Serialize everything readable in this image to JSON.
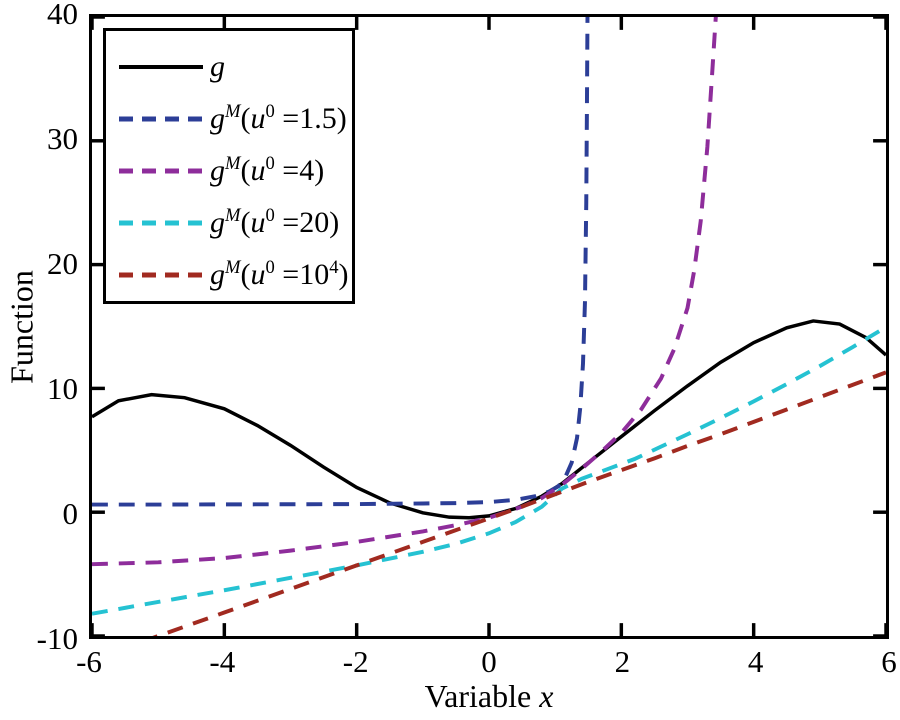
{
  "figure": {
    "background": "#ffffff",
    "axis_color": "#000000"
  },
  "axis": {
    "xlabel_regular": "Variable ",
    "xlabel_italic": "x",
    "ylabel": "Function"
  },
  "legend": {
    "position": "upper-left",
    "items": [
      {
        "g": "g",
        "gsup": "",
        "open": "",
        "u": "",
        "usup": "",
        "eq": "",
        "val": "",
        "valsup": "",
        "close": "",
        "color": "#000000",
        "style": "solid"
      },
      {
        "g": "g",
        "gsup": "M",
        "open": "(",
        "u": "u",
        "usup": "0",
        "eq": " =",
        "val": "1.5",
        "valsup": "",
        "close": ")",
        "color": "#2c3e97",
        "style": "dashed"
      },
      {
        "g": "g",
        "gsup": "M",
        "open": "(",
        "u": "u",
        "usup": "0",
        "eq": " =",
        "val": "4",
        "valsup": "",
        "close": ")",
        "color": "#8e2d9b",
        "style": "dashed"
      },
      {
        "g": "g",
        "gsup": "M",
        "open": "(",
        "u": "u",
        "usup": "0",
        "eq": " =",
        "val": "20",
        "valsup": "",
        "close": ")",
        "color": "#25c2d2",
        "style": "dashed"
      },
      {
        "g": "g",
        "gsup": "M",
        "open": "(",
        "u": "u",
        "usup": "0",
        "eq": " =",
        "val": "10",
        "valsup": "4",
        "close": ")",
        "color": "#a12a20",
        "style": "dashed"
      }
    ]
  },
  "chart_data": {
    "type": "line",
    "title": "",
    "xlabel": "Variable x",
    "ylabel": "Function",
    "xlim": [
      -6,
      6
    ],
    "ylim": [
      -10,
      40
    ],
    "xticks": [
      -6,
      -4,
      -2,
      0,
      2,
      4,
      6
    ],
    "xtick_labels": [
      "-6",
      "-4",
      "-2",
      "0",
      "2",
      "4",
      "6"
    ],
    "yticks": [
      -10,
      0,
      10,
      20,
      30,
      40
    ],
    "ytick_labels": [
      "-10",
      "0",
      "10",
      "20",
      "30",
      "40"
    ],
    "grid": false,
    "legend_position": "upper-left",
    "series": [
      {
        "name": "g",
        "color": "#000000",
        "style": "solid",
        "width": 3.5,
        "points": [
          [
            -6,
            7.7
          ],
          [
            -5.6,
            9.0
          ],
          [
            -5.1,
            9.5
          ],
          [
            -4.6,
            9.25
          ],
          [
            -4,
            8.35
          ],
          [
            -3.5,
            7.0
          ],
          [
            -3,
            5.4
          ],
          [
            -2.5,
            3.65
          ],
          [
            -2,
            2.0
          ],
          [
            -1.5,
            0.75
          ],
          [
            -1,
            -0.05
          ],
          [
            -0.6,
            -0.4
          ],
          [
            -0.3,
            -0.45
          ],
          [
            0,
            -0.3
          ],
          [
            0.4,
            0.3
          ],
          [
            0.8,
            1.3
          ],
          [
            1.1,
            2.3
          ],
          [
            1.5,
            4.0
          ],
          [
            2,
            6.1
          ],
          [
            2.5,
            8.2
          ],
          [
            3,
            10.2
          ],
          [
            3.5,
            12.1
          ],
          [
            4,
            13.7
          ],
          [
            4.5,
            14.9
          ],
          [
            4.9,
            15.45
          ],
          [
            5.3,
            15.2
          ],
          [
            5.7,
            14.1
          ],
          [
            6,
            12.7
          ]
        ]
      },
      {
        "name": "g^M(u^0=1.5)",
        "color": "#2c3e97",
        "style": "dashed",
        "width": 4,
        "points": [
          [
            -6,
            0.62
          ],
          [
            -5,
            0.62
          ],
          [
            -4,
            0.63
          ],
          [
            -3,
            0.64
          ],
          [
            -2,
            0.66
          ],
          [
            -1,
            0.7
          ],
          [
            -0.5,
            0.74
          ],
          [
            0,
            0.82
          ],
          [
            0.4,
            1.0
          ],
          [
            0.7,
            1.3
          ],
          [
            0.9,
            1.65
          ],
          [
            1.05,
            2.1
          ],
          [
            1.15,
            2.8
          ],
          [
            1.25,
            4.0
          ],
          [
            1.33,
            6.0
          ],
          [
            1.38,
            8.5
          ],
          [
            1.42,
            12
          ],
          [
            1.45,
            17
          ],
          [
            1.47,
            25
          ],
          [
            1.48,
            33
          ],
          [
            1.49,
            41
          ]
        ]
      },
      {
        "name": "g^M(u^0=4)",
        "color": "#8e2d9b",
        "style": "dashed",
        "width": 4,
        "points": [
          [
            -6,
            -4.2
          ],
          [
            -5,
            -4.05
          ],
          [
            -4,
            -3.7
          ],
          [
            -3,
            -3.1
          ],
          [
            -2,
            -2.4
          ],
          [
            -1,
            -1.55
          ],
          [
            -0.5,
            -1.05
          ],
          [
            0,
            -0.45
          ],
          [
            0.5,
            0.45
          ],
          [
            0.8,
            1.15
          ],
          [
            1.1,
            2.2
          ],
          [
            1.4,
            3.5
          ],
          [
            1.7,
            4.9
          ],
          [
            2,
            6.4
          ],
          [
            2.3,
            8.3
          ],
          [
            2.6,
            10.8
          ],
          [
            2.8,
            13.2
          ],
          [
            3.0,
            16.5
          ],
          [
            3.1,
            19.5
          ],
          [
            3.2,
            23.5
          ],
          [
            3.3,
            29.5
          ],
          [
            3.38,
            36
          ],
          [
            3.44,
            41
          ]
        ]
      },
      {
        "name": "g^M(u^0=20)",
        "color": "#25c2d2",
        "style": "dashed",
        "width": 4,
        "points": [
          [
            -6,
            -8.2
          ],
          [
            -5,
            -7.25
          ],
          [
            -4,
            -6.3
          ],
          [
            -3,
            -5.3
          ],
          [
            -2,
            -4.3
          ],
          [
            -1,
            -3.2
          ],
          [
            -0.5,
            -2.55
          ],
          [
            0,
            -1.7
          ],
          [
            0.4,
            -0.8
          ],
          [
            0.8,
            0.45
          ],
          [
            1.1,
            1.9
          ],
          [
            1.4,
            2.7
          ],
          [
            1.8,
            3.5
          ],
          [
            2.2,
            4.3
          ],
          [
            2.6,
            5.3
          ],
          [
            3,
            6.3
          ],
          [
            3.5,
            7.6
          ],
          [
            4,
            8.95
          ],
          [
            4.5,
            10.35
          ],
          [
            5,
            11.8
          ],
          [
            5.5,
            13.35
          ],
          [
            6,
            14.95
          ]
        ]
      },
      {
        "name": "g^M(u^0=10^4)",
        "color": "#a12a20",
        "style": "dashed",
        "width": 4,
        "points": [
          [
            -6,
            -11.9
          ],
          [
            -5,
            -10.0
          ],
          [
            -4,
            -8.1
          ],
          [
            -3,
            -6.2
          ],
          [
            -2,
            -4.3
          ],
          [
            -1,
            -2.4
          ],
          [
            -0.5,
            -1.45
          ],
          [
            0,
            -0.5
          ],
          [
            0.5,
            0.45
          ],
          [
            1,
            1.45
          ],
          [
            1.5,
            2.45
          ],
          [
            2,
            3.4
          ],
          [
            2.5,
            4.35
          ],
          [
            3,
            5.35
          ],
          [
            3.5,
            6.3
          ],
          [
            4,
            7.3
          ],
          [
            4.5,
            8.3
          ],
          [
            5,
            9.3
          ],
          [
            5.5,
            10.3
          ],
          [
            6,
            11.3
          ]
        ]
      }
    ]
  }
}
